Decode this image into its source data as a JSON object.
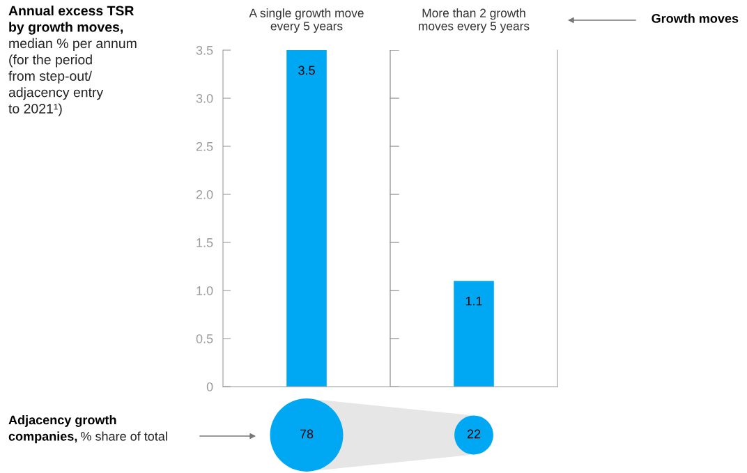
{
  "chart_data": [
    {
      "type": "bar",
      "title": "Annual excess TSR\nby growth moves,",
      "subtitle": "median % per annum\n(for the period\nfrom step-out/\nadjacency entry\nto 2021¹)",
      "categories": [
        "A single growth move\nevery 5 years",
        "More than 2 growth\nmoves every 5 years"
      ],
      "values": [
        3.5,
        1.1
      ],
      "color": "#00a8f3",
      "ylim": [
        0,
        3.5
      ],
      "yticks": [
        0,
        0.5,
        {
          "value": 1,
          "label": "1.0"
        },
        1.5,
        {
          "value": 2,
          "label": "2.0"
        },
        2.5,
        {
          "value": 3,
          "label": "3.0"
        },
        3.5
      ],
      "grid": false,
      "data_labels": true,
      "annotations": [
        "Growth moves"
      ]
    },
    {
      "type": "other",
      "title": "Adjacency growth\ncompanies,",
      "subtitle": "% share of total",
      "categories": [
        null,
        null
      ],
      "values": [
        78,
        22
      ],
      "colors": [
        "#00a8f3",
        "#00a8f3"
      ],
      "data_labels": true
    }
  ]
}
